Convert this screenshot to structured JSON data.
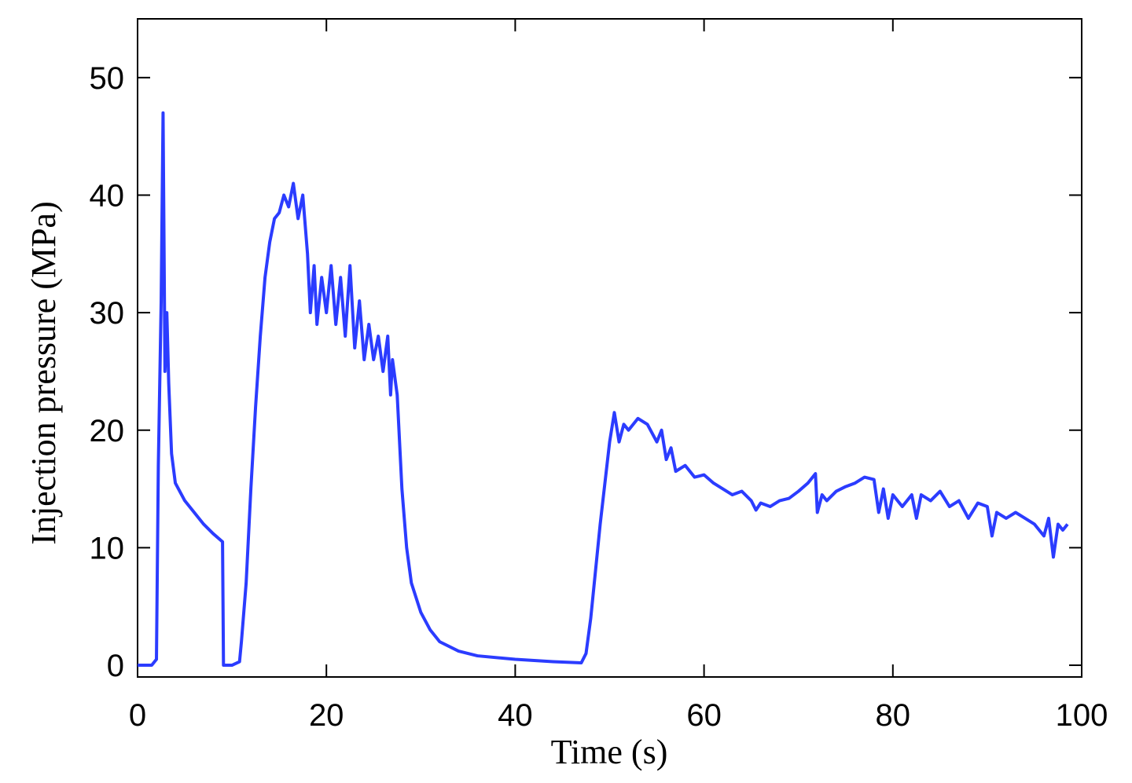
{
  "chart_data": {
    "type": "line",
    "xlabel": "Time (s)",
    "ylabel": "Injection pressure (MPa)",
    "color": "#2b3cff",
    "xlim": [
      0,
      100
    ],
    "xticks": [
      0,
      20,
      40,
      60,
      80,
      100
    ],
    "ylim": [
      -1,
      55
    ],
    "yticks": [
      0,
      10,
      20,
      30,
      40,
      50
    ],
    "x": [
      0,
      1.5,
      2,
      2.2,
      2.5,
      2.7,
      2.9,
      3.1,
      3.3,
      3.6,
      4,
      5,
      6,
      7,
      8,
      9,
      9.1,
      10,
      10.8,
      11,
      11.5,
      12,
      12.5,
      13,
      13.5,
      14,
      14.5,
      15,
      15.5,
      16,
      16.5,
      17,
      17.5,
      18,
      18.3,
      18.7,
      19,
      19.5,
      20,
      20.5,
      21,
      21.5,
      22,
      22.5,
      23,
      23.5,
      24,
      24.5,
      25,
      25.5,
      26,
      26.5,
      26.8,
      27,
      27.5,
      28,
      28.5,
      29,
      30,
      31,
      32,
      34,
      36,
      40,
      44,
      47,
      47.5,
      48,
      49,
      50,
      50.5,
      51,
      51.5,
      52,
      53,
      54,
      55,
      55.5,
      56,
      56.5,
      57,
      58,
      59,
      60,
      61,
      62,
      63,
      64,
      65,
      65.5,
      66,
      67,
      68,
      69,
      70,
      71,
      71.8,
      72,
      72.5,
      73,
      74,
      75,
      76,
      77,
      78,
      78.5,
      79,
      79.5,
      80,
      81,
      82,
      82.5,
      83,
      84,
      85,
      86,
      87,
      88,
      89,
      90,
      90.5,
      91,
      92,
      93,
      94,
      95,
      96,
      96.5,
      97,
      97.5,
      98,
      98.5
    ],
    "values": [
      0,
      0,
      0.5,
      17,
      31,
      47,
      25,
      30,
      24,
      18,
      15.5,
      14,
      13,
      12,
      11.2,
      10.5,
      0,
      0,
      0.3,
      2,
      7,
      15,
      22,
      28,
      33,
      36,
      38,
      38.5,
      40,
      39,
      41,
      38,
      40,
      35,
      30,
      34,
      29,
      33,
      30,
      34,
      29,
      33,
      28,
      34,
      27,
      31,
      26,
      29,
      26,
      28,
      25,
      28,
      23,
      26,
      23,
      15,
      10,
      7,
      4.5,
      3,
      2,
      1.2,
      0.8,
      0.5,
      0.3,
      0.2,
      1,
      4,
      12,
      19,
      21.5,
      19,
      20.5,
      20,
      21,
      20.5,
      19,
      20,
      17.5,
      18.5,
      16.5,
      17,
      16,
      16.2,
      15.5,
      15,
      14.5,
      14.8,
      14,
      13.2,
      13.8,
      13.5,
      14,
      14.2,
      14.8,
      15.5,
      16.3,
      13,
      14.5,
      14,
      14.8,
      15.2,
      15.5,
      16,
      15.8,
      13,
      15,
      12.5,
      14.5,
      13.5,
      14.5,
      12.5,
      14.5,
      14,
      14.8,
      13.5,
      14,
      12.5,
      13.8,
      13.5,
      11,
      13,
      12.5,
      13,
      12.5,
      12,
      11,
      12.5,
      9.2,
      12,
      11.5,
      12
    ]
  }
}
